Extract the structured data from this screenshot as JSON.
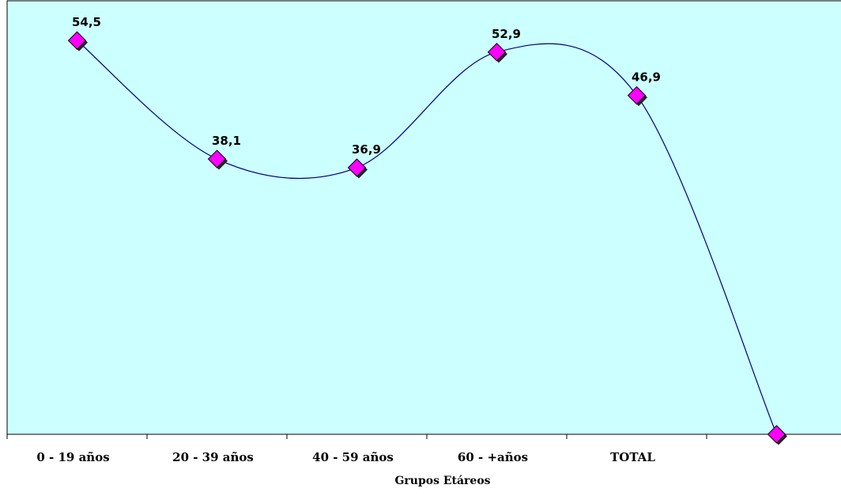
{
  "chart_data": {
    "type": "line",
    "categories": [
      "0 - 19 años",
      "20 - 39 años",
      "40 - 59 años",
      "60 - +años",
      "TOTAL",
      ""
    ],
    "series": [
      {
        "values": [
          54.5,
          38.1,
          36.9,
          52.9,
          46.9,
          0
        ],
        "color": "#ff00ff",
        "line_color": "#000080",
        "marker": "diamond",
        "smooth": true
      }
    ],
    "data_labels": [
      "54,5",
      "38,1",
      "36,9",
      "52,9",
      "46,9",
      ""
    ],
    "xlabel": "Grupos Etáreos",
    "ylabel": "",
    "ylim": [
      0,
      60
    ],
    "grid": false,
    "legend": "none",
    "background": "#ccffff"
  }
}
